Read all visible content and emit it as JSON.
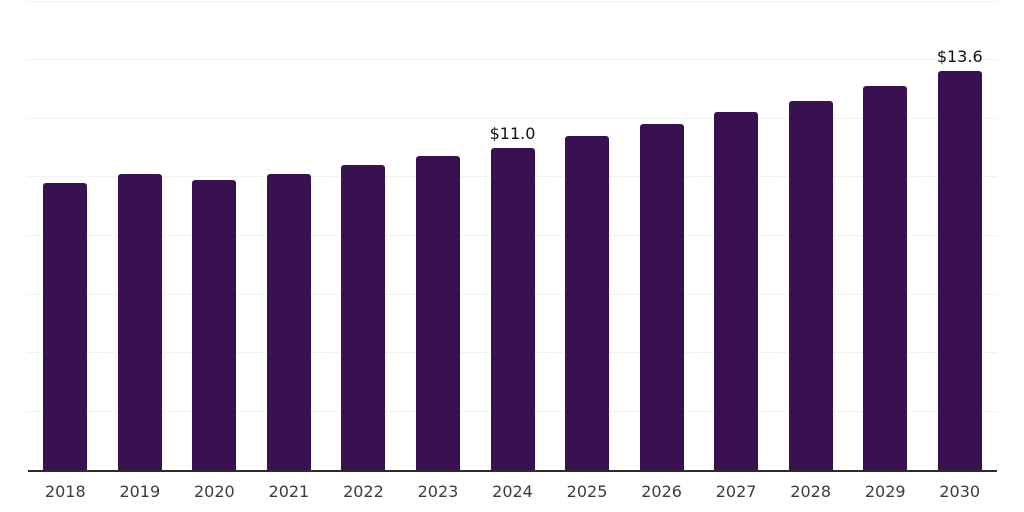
{
  "chart_data": {
    "type": "bar",
    "title": "",
    "xlabel": "",
    "ylabel": "",
    "categories": [
      "2018",
      "2019",
      "2020",
      "2021",
      "2022",
      "2023",
      "2024",
      "2025",
      "2026",
      "2027",
      "2028",
      "2029",
      "2030"
    ],
    "values": [
      9.8,
      10.1,
      9.9,
      10.1,
      10.4,
      10.7,
      11.0,
      11.4,
      11.8,
      12.2,
      12.6,
      13.1,
      13.6
    ],
    "data_labels": [
      null,
      null,
      null,
      null,
      null,
      null,
      "$11.0",
      null,
      null,
      null,
      null,
      null,
      "$13.6"
    ],
    "ylim": [
      0,
      16
    ],
    "gridline_step": 2,
    "grid": true,
    "legend_position": "none",
    "y_axis_tick_labels_visible": false,
    "colors": {
      "bar": "#3a1150",
      "axis_line": "#2b2b2b",
      "gridline": "#f2f2f2",
      "x_label_text": "#3c3c3c",
      "data_label_text": "#101010",
      "background": "#ffffff"
    }
  }
}
